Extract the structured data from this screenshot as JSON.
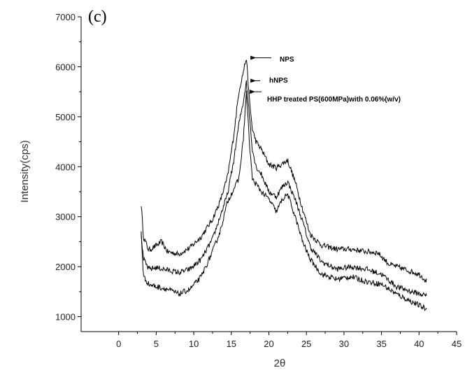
{
  "chart_data": {
    "type": "line",
    "panel_label": "(c)",
    "title": "",
    "xlabel": "2θ",
    "ylabel": "Intensity(cps)",
    "xlim": [
      -5,
      45
    ],
    "ylim": [
      700,
      7000
    ],
    "x_ticks": [
      0,
      5,
      10,
      15,
      20,
      25,
      30,
      35,
      40,
      45
    ],
    "y_ticks": [
      1000,
      2000,
      3000,
      4000,
      5000,
      6000,
      7000
    ],
    "line_color": "#000000",
    "grid": false,
    "series": [
      {
        "name": "NPS",
        "peak": [
          17,
          6180
        ],
        "x": [
          3,
          3.3,
          4,
          5,
          5.7,
          6.5,
          8,
          9.5,
          11,
          12.5,
          13.5,
          14.5,
          15.3,
          16,
          16.6,
          17,
          17.4,
          17.8,
          18.3,
          19,
          20,
          21,
          22,
          22.5,
          23.5,
          24.5,
          25.5,
          27,
          29,
          31,
          33,
          34.5,
          36,
          38,
          40,
          41
        ],
        "values": [
          3250,
          2600,
          2330,
          2420,
          2500,
          2300,
          2250,
          2380,
          2600,
          2950,
          3300,
          3800,
          4600,
          5500,
          5900,
          6180,
          5350,
          4750,
          4500,
          4350,
          4050,
          3980,
          4080,
          4130,
          3700,
          3150,
          2650,
          2430,
          2350,
          2350,
          2300,
          2280,
          2050,
          1950,
          1850,
          1720
        ]
      },
      {
        "name": "hNPS",
        "peak": [
          17,
          5720
        ],
        "x": [
          3,
          3.3,
          4,
          5,
          6,
          8,
          9.5,
          11,
          12.5,
          13.5,
          14.5,
          15.3,
          16,
          16.6,
          17,
          17.4,
          17.8,
          18.3,
          19,
          20,
          21,
          21.8,
          22.5,
          23.5,
          24.5,
          25.5,
          27,
          29,
          31,
          33,
          35,
          37,
          39,
          41
        ],
        "values": [
          2650,
          2150,
          1950,
          1980,
          1950,
          1880,
          1950,
          2150,
          2550,
          3000,
          3450,
          4100,
          4850,
          5300,
          5720,
          5050,
          4350,
          4000,
          3850,
          3500,
          3400,
          3600,
          3700,
          3350,
          2900,
          2400,
          2100,
          1950,
          2000,
          1950,
          1850,
          1600,
          1500,
          1420
        ]
      },
      {
        "name": "HHP treated PS(600MPa)with 0.06%(w/v)",
        "peak": [
          17,
          5500
        ],
        "x": [
          3,
          3.3,
          4,
          5,
          6.5,
          8,
          9.5,
          11,
          12.5,
          13.5,
          14.5,
          15.3,
          16,
          16.6,
          17,
          17.4,
          17.8,
          18.3,
          19,
          20,
          21,
          21.8,
          22.5,
          23.5,
          24.5,
          25.5,
          27,
          29,
          31,
          33,
          35,
          37,
          39,
          41
        ],
        "values": [
          2700,
          1800,
          1650,
          1600,
          1550,
          1450,
          1550,
          1800,
          2300,
          2700,
          3300,
          3550,
          3750,
          4550,
          5500,
          4500,
          3750,
          3650,
          3500,
          3350,
          3100,
          3350,
          3450,
          3000,
          2500,
          2150,
          1850,
          1750,
          1800,
          1700,
          1650,
          1450,
          1300,
          1150
        ]
      }
    ],
    "annotations": [
      {
        "text": "NPS",
        "series": "NPS"
      },
      {
        "text": "hNPS",
        "series": "hNPS"
      },
      {
        "text": "HHP treated PS(600MPa)with 0.06%(w/v)",
        "series": "HHP treated PS(600MPa)with 0.06%(w/v)"
      }
    ]
  }
}
